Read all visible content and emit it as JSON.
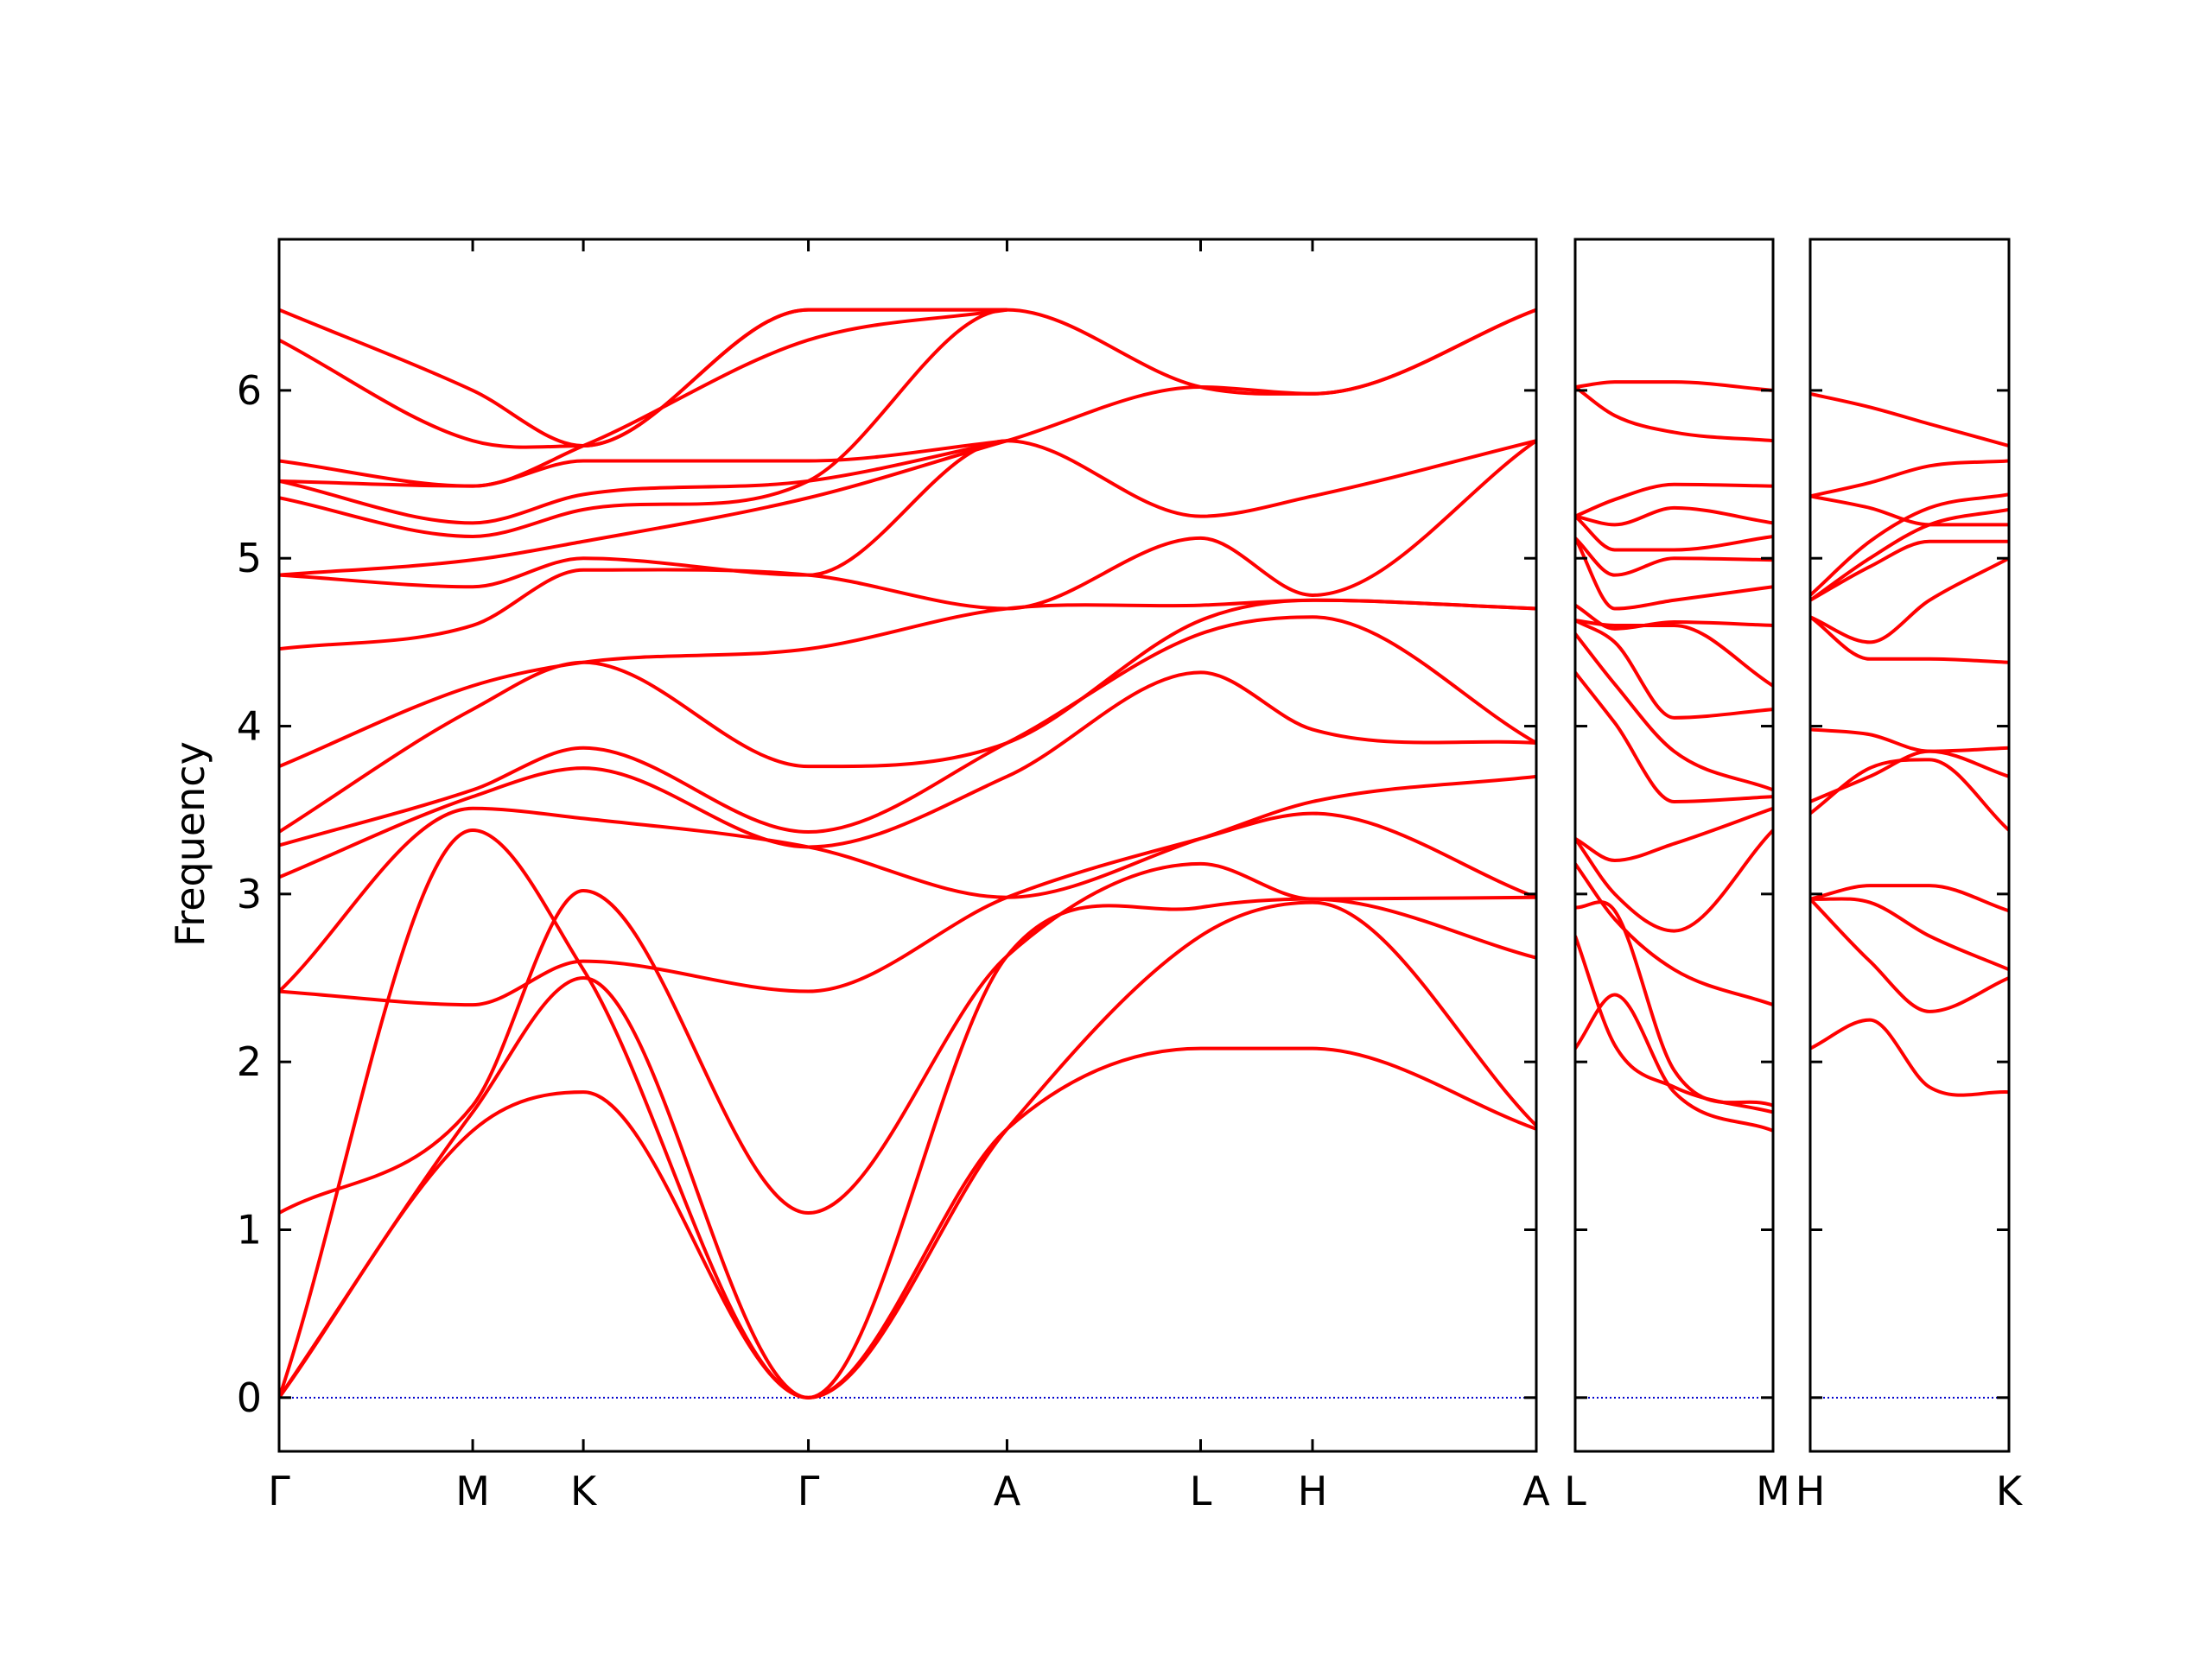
{
  "chart_data": {
    "type": "line",
    "title": "",
    "ylabel": "Frequency",
    "xlabel": "",
    "ylim": [
      -0.32,
      6.9
    ],
    "y_ticks": [
      0,
      1,
      2,
      3,
      4,
      5,
      6
    ],
    "grid": false,
    "legend": "none",
    "colors": {
      "bands": "#ff0000",
      "zero_line": "#0000cc",
      "axes": "#000000"
    },
    "panels": [
      {
        "path": [
          "Γ",
          "M",
          "K",
          "Γ",
          "A",
          "L",
          "H",
          "A"
        ],
        "x_ticks": [
          {
            "x": 0.0,
            "label": "Γ"
          },
          {
            "x": 0.154,
            "label": "M"
          },
          {
            "x": 0.242,
            "label": "K"
          },
          {
            "x": 0.421,
            "label": "Γ"
          },
          {
            "x": 0.579,
            "label": "A"
          },
          {
            "x": 0.733,
            "label": "L"
          },
          {
            "x": 0.822,
            "label": "H"
          },
          {
            "x": 1.0,
            "label": "A"
          }
        ],
        "bands": [
          {
            "x": [
              0,
              0.154,
              0.242,
              0.421,
              0.579,
              0.733,
              0.822,
              1.0
            ],
            "y": [
              0,
              1.59,
              1.82,
              0,
              1.6,
              2.08,
              2.08,
              1.6
            ]
          },
          {
            "x": [
              0,
              0.154,
              0.242,
              0.421,
              0.579,
              0.733,
              0.822,
              1.0
            ],
            "y": [
              0,
              1.7,
              2.5,
              0,
              1.6,
              2.75,
              2.95,
              1.62
            ]
          },
          {
            "x": [
              0,
              0.154,
              0.242,
              0.421,
              0.579,
              0.733,
              0.822,
              1.0
            ],
            "y": [
              0,
              3.38,
              2.55,
              0,
              2.63,
              2.92,
              2.97,
              2.62
            ]
          },
          {
            "x": [
              0,
              0.154,
              0.242,
              0.421,
              0.579,
              0.733,
              0.822,
              1.0
            ],
            "y": [
              1.1,
              1.74,
              3.02,
              1.1,
              2.63,
              3.18,
              2.97,
              2.98
            ]
          },
          {
            "x": [
              0,
              0.154,
              0.242,
              0.421,
              0.579,
              0.733,
              0.822,
              1.0
            ],
            "y": [
              2.42,
              2.34,
              2.6,
              2.42,
              2.98,
              3.33,
              3.48,
              2.98
            ]
          },
          {
            "x": [
              0,
              0.154,
              0.242,
              0.421,
              0.579,
              0.733,
              0.822,
              1.0
            ],
            "y": [
              2.42,
              3.51,
              3.45,
              3.28,
              2.98,
              3.33,
              3.55,
              3.7
            ]
          },
          {
            "x": [
              0,
              0.154,
              0.242,
              0.421,
              0.579,
              0.733,
              0.822,
              1.0
            ],
            "y": [
              3.1,
              3.58,
              3.75,
              3.28,
              3.7,
              4.32,
              3.98,
              3.9
            ]
          },
          {
            "x": [
              0,
              0.154,
              0.242,
              0.421,
              0.579,
              0.733,
              0.822,
              1.0
            ],
            "y": [
              3.29,
              3.62,
              3.87,
              3.37,
              3.9,
              4.55,
              4.65,
              3.9
            ]
          },
          {
            "x": [
              0,
              0.154,
              0.242,
              0.421,
              0.579,
              0.733,
              0.822,
              1.0
            ],
            "y": [
              3.37,
              4.1,
              4.38,
              3.76,
              3.9,
              4.63,
              4.75,
              4.7
            ]
          },
          {
            "x": [
              0,
              0.154,
              0.242,
              0.421,
              0.579,
              0.733,
              0.822,
              1.0
            ],
            "y": [
              3.76,
              4.24,
              4.38,
              4.46,
              4.7,
              4.72,
              4.75,
              4.7
            ]
          },
          {
            "x": [
              0,
              0.154,
              0.242,
              0.421,
              0.579,
              0.733,
              0.822,
              1.0
            ],
            "y": [
              4.46,
              4.6,
              4.93,
              4.9,
              4.7,
              5.12,
              4.78,
              5.7
            ]
          },
          {
            "x": [
              0,
              0.154,
              0.242,
              0.421,
              0.579,
              0.733,
              0.822,
              1.0
            ],
            "y": [
              4.9,
              4.83,
              5.0,
              4.9,
              5.7,
              5.25,
              5.37,
              5.7
            ]
          },
          {
            "x": [
              0,
              0.154,
              0.242,
              0.421,
              0.579,
              0.733,
              0.822,
              1.0
            ],
            "y": [
              4.9,
              4.99,
              5.1,
              5.36,
              5.7,
              6.02,
              5.98,
              6.48
            ]
          },
          {
            "x": [
              0,
              0.154,
              0.242,
              0.421,
              0.579,
              0.733,
              0.822,
              1.0
            ],
            "y": [
              5.36,
              5.13,
              5.29,
              5.46,
              6.48,
              6.02,
              5.98,
              6.48
            ]
          },
          {
            "x": [
              0,
              0.154,
              0.242,
              0.421,
              0.579
            ],
            "y": [
              5.46,
              5.21,
              5.38,
              5.46,
              5.7
            ]
          },
          {
            "x": [
              0,
              0.154,
              0.242,
              0.421,
              0.579
            ],
            "y": [
              5.46,
              5.43,
              5.58,
              5.58,
              5.7
            ]
          },
          {
            "x": [
              0,
              0.154,
              0.242,
              0.421,
              0.579
            ],
            "y": [
              5.58,
              5.43,
              5.67,
              6.3,
              6.48
            ]
          },
          {
            "x": [
              0,
              0.154,
              0.242,
              0.421,
              0.579
            ],
            "y": [
              6.3,
              5.7,
              5.67,
              6.48,
              6.48
            ]
          },
          {
            "x": [
              0,
              0.154,
              0.242,
              0.421,
              0.579
            ],
            "y": [
              6.48,
              6.0,
              5.67,
              6.48,
              6.48
            ]
          }
        ]
      },
      {
        "path": [
          "L",
          "M"
        ],
        "x_ticks": [
          {
            "x": 0.0,
            "label": "L"
          },
          {
            "x": 1.0,
            "label": "M"
          }
        ],
        "bands": [
          {
            "x": [
              0,
              0.2,
              0.5,
              1.0
            ],
            "y": [
              2.08,
              2.4,
              1.82,
              1.59
            ]
          },
          {
            "x": [
              0,
              0.2,
              0.5,
              1.0
            ],
            "y": [
              2.75,
              2.1,
              1.85,
              1.7
            ]
          },
          {
            "x": [
              0,
              0.2,
              0.5,
              1.0
            ],
            "y": [
              2.92,
              2.9,
              1.95,
              1.74
            ]
          },
          {
            "x": [
              0,
              0.2,
              0.5,
              1.0
            ],
            "y": [
              3.18,
              2.85,
              2.55,
              2.34
            ]
          },
          {
            "x": [
              0,
              0.2,
              0.5,
              1.0
            ],
            "y": [
              3.33,
              3.0,
              2.78,
              3.38
            ]
          },
          {
            "x": [
              0,
              0.2,
              0.5,
              1.0
            ],
            "y": [
              3.33,
              3.2,
              3.3,
              3.51
            ]
          },
          {
            "x": [
              0,
              0.2,
              0.5,
              1.0
            ],
            "y": [
              4.32,
              4.02,
              3.55,
              3.58
            ]
          },
          {
            "x": [
              0,
              0.2,
              0.5,
              1.0
            ],
            "y": [
              4.55,
              4.25,
              3.85,
              3.62
            ]
          },
          {
            "x": [
              0,
              0.2,
              0.5,
              1.0
            ],
            "y": [
              4.63,
              4.5,
              4.05,
              4.1
            ]
          },
          {
            "x": [
              0,
              0.2,
              0.5,
              1.0
            ],
            "y": [
              4.63,
              4.6,
              4.6,
              4.24
            ]
          },
          {
            "x": [
              0,
              0.2,
              0.5,
              1.0
            ],
            "y": [
              4.72,
              4.58,
              4.62,
              4.6
            ]
          },
          {
            "x": [
              0,
              0.2,
              0.5,
              1.0
            ],
            "y": [
              5.12,
              4.7,
              4.75,
              4.83
            ]
          },
          {
            "x": [
              0,
              0.2,
              0.5,
              1.0
            ],
            "y": [
              5.12,
              4.9,
              5.0,
              4.99
            ]
          },
          {
            "x": [
              0,
              0.2,
              0.5,
              1.0
            ],
            "y": [
              5.25,
              5.05,
              5.05,
              5.13
            ]
          },
          {
            "x": [
              0,
              0.2,
              0.5,
              1.0
            ],
            "y": [
              5.25,
              5.2,
              5.3,
              5.21
            ]
          },
          {
            "x": [
              0,
              0.2,
              0.5,
              1.0
            ],
            "y": [
              5.25,
              5.35,
              5.44,
              5.43
            ]
          },
          {
            "x": [
              0,
              0.2,
              0.5,
              1.0
            ],
            "y": [
              6.02,
              5.85,
              5.75,
              5.7
            ]
          },
          {
            "x": [
              0,
              0.2,
              0.5,
              1.0
            ],
            "y": [
              6.02,
              6.05,
              6.05,
              6.0
            ]
          }
        ]
      },
      {
        "path": [
          "H",
          "K"
        ],
        "x_ticks": [
          {
            "x": 0.0,
            "label": "H"
          },
          {
            "x": 1.0,
            "label": "K"
          }
        ],
        "bands": [
          {
            "x": [
              0,
              0.3,
              0.6,
              1.0
            ],
            "y": [
              2.08,
              2.25,
              1.85,
              1.82
            ]
          },
          {
            "x": [
              0,
              0.3,
              0.6,
              1.0
            ],
            "y": [
              2.97,
              2.6,
              2.3,
              2.5
            ]
          },
          {
            "x": [
              0,
              0.3,
              0.6,
              1.0
            ],
            "y": [
              2.97,
              2.95,
              2.75,
              2.55
            ]
          },
          {
            "x": [
              0,
              0.3,
              0.6,
              1.0
            ],
            "y": [
              2.97,
              3.05,
              3.05,
              2.9
            ]
          },
          {
            "x": [
              0,
              0.3,
              0.6,
              1.0
            ],
            "y": [
              3.48,
              3.75,
              3.8,
              3.38
            ]
          },
          {
            "x": [
              0,
              0.3,
              0.6,
              1.0
            ],
            "y": [
              3.55,
              3.7,
              3.85,
              3.7
            ]
          },
          {
            "x": [
              0,
              0.3,
              0.6,
              1.0
            ],
            "y": [
              3.98,
              3.95,
              3.85,
              3.87
            ]
          },
          {
            "x": [
              0,
              0.3,
              0.6,
              1.0
            ],
            "y": [
              4.65,
              4.4,
              4.4,
              4.38
            ]
          },
          {
            "x": [
              0,
              0.3,
              0.6,
              1.0
            ],
            "y": [
              4.65,
              4.5,
              4.75,
              5.0
            ]
          },
          {
            "x": [
              0,
              0.3,
              0.6,
              1.0
            ],
            "y": [
              4.75,
              4.95,
              5.1,
              5.1
            ]
          },
          {
            "x": [
              0,
              0.3,
              0.6,
              1.0
            ],
            "y": [
              4.75,
              5.0,
              5.2,
              5.29
            ]
          },
          {
            "x": [
              0,
              0.3,
              0.6,
              1.0
            ],
            "y": [
              4.78,
              5.1,
              5.3,
              5.38
            ]
          },
          {
            "x": [
              0,
              0.3,
              0.6,
              1.0
            ],
            "y": [
              5.37,
              5.45,
              5.55,
              5.58
            ]
          },
          {
            "x": [
              0,
              0.3,
              0.6,
              1.0
            ],
            "y": [
              5.37,
              5.3,
              5.2,
              5.2
            ]
          },
          {
            "x": [
              0,
              0.3,
              0.6,
              1.0
            ],
            "y": [
              5.98,
              5.9,
              5.8,
              5.67
            ]
          }
        ]
      }
    ]
  }
}
